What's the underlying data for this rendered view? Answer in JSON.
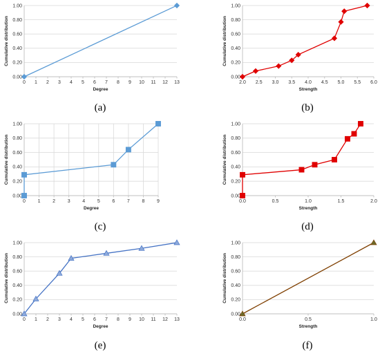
{
  "chart_data": [
    {
      "id": "a",
      "caption": "(a)",
      "type": "line",
      "xlabel": "Degree",
      "ylabel": "Cumulative distribution",
      "xticks": [
        "0",
        "1",
        "2",
        "3",
        "4",
        "5",
        "6",
        "7",
        "8",
        "9",
        "10",
        "11",
        "12",
        "13"
      ],
      "yticks": [
        "0.00",
        "0.20",
        "0.40",
        "0.60",
        "0.80",
        "1.00"
      ],
      "xlim": [
        0,
        13
      ],
      "ylim": [
        0,
        1
      ],
      "grid": "horizontal",
      "color": "#5b9bd5",
      "marker": "diamond",
      "x": [
        0,
        13
      ],
      "y": [
        0.0,
        1.0
      ]
    },
    {
      "id": "b",
      "caption": "(b)",
      "type": "line",
      "xlabel": "Strength",
      "ylabel": "Cumulative distribution",
      "xticks": [
        "2.0",
        "2.5",
        "3.0",
        "3.5",
        "4.0",
        "4.5",
        "5.0",
        "5.5",
        "6.0"
      ],
      "yticks": [
        "0.00",
        "0.20",
        "0.40",
        "0.60",
        "0.80",
        "1.00"
      ],
      "xlim": [
        2,
        6
      ],
      "ylim": [
        0,
        1
      ],
      "grid": "horizontal",
      "color": "#e00000",
      "marker": "diamond",
      "x": [
        2.0,
        2.4,
        3.1,
        3.5,
        3.7,
        4.8,
        5.0,
        5.1,
        5.8
      ],
      "y": [
        0.0,
        0.08,
        0.15,
        0.23,
        0.31,
        0.54,
        0.77,
        0.92,
        1.0
      ]
    },
    {
      "id": "c",
      "caption": "(c)",
      "type": "line",
      "xlabel": "Degree",
      "ylabel": "Cumulative distribution",
      "xticks": [
        "0",
        "1",
        "2",
        "3",
        "4",
        "5",
        "6",
        "7",
        "8",
        "9"
      ],
      "yticks": [
        "0.00",
        "0.20",
        "0.40",
        "0.60",
        "0.80",
        "1.00"
      ],
      "xlim": [
        0,
        9
      ],
      "ylim": [
        0,
        1
      ],
      "grid": "both",
      "color": "#5b9bd5",
      "marker": "square",
      "x": [
        0,
        0,
        6,
        7,
        9
      ],
      "y": [
        0.0,
        0.29,
        0.43,
        0.64,
        1.0
      ]
    },
    {
      "id": "d",
      "caption": "(d)",
      "type": "line",
      "xlabel": "Strength",
      "ylabel": "Cumulative distribution",
      "xticks": [
        "0.0",
        "0.5",
        "1.0",
        "1.5",
        "2.0"
      ],
      "yticks": [
        "0.00",
        "0.20",
        "0.40",
        "0.60",
        "0.80",
        "1.00"
      ],
      "xlim": [
        0,
        2
      ],
      "ylim": [
        0,
        1
      ],
      "grid": "horizontal",
      "color": "#e00000",
      "marker": "square",
      "x": [
        0.0,
        0.0,
        0.9,
        1.1,
        1.4,
        1.6,
        1.7,
        1.8
      ],
      "y": [
        0.0,
        0.29,
        0.36,
        0.43,
        0.5,
        0.79,
        0.86,
        1.0
      ]
    },
    {
      "id": "e",
      "caption": "(e)",
      "type": "line",
      "xlabel": "Degree",
      "ylabel": "Cumulative distribution",
      "xticks": [
        "0",
        "1",
        "2",
        "3",
        "4",
        "5",
        "6",
        "7",
        "8",
        "9",
        "10",
        "11",
        "12",
        "13"
      ],
      "yticks": [
        "0.00",
        "0.20",
        "0.40",
        "0.60",
        "0.80",
        "1.00"
      ],
      "xlim": [
        0,
        13
      ],
      "ylim": [
        0,
        1
      ],
      "grid": "horizontal",
      "color": "#4472c4",
      "marker": "triangle",
      "x": [
        0,
        1,
        3,
        4,
        7,
        10,
        13
      ],
      "y": [
        0.0,
        0.21,
        0.57,
        0.78,
        0.85,
        0.92,
        1.0
      ]
    },
    {
      "id": "f",
      "caption": "(f)",
      "type": "line",
      "xlabel": "Strength",
      "ylabel": "Cumulative distribution",
      "xticks": [
        "0.0",
        "0.5",
        "1.0"
      ],
      "yticks": [
        "0.00",
        "0.20",
        "0.40",
        "0.60",
        "0.80",
        "1.00"
      ],
      "xlim": [
        0,
        1
      ],
      "ylim": [
        0,
        1
      ],
      "grid": "horizontal",
      "color": "#7f3f00",
      "marker": "triangle",
      "x": [
        0.0,
        1.0
      ],
      "y": [
        0.0,
        1.0
      ]
    }
  ],
  "marker_fill": {
    "a": "#5b9bd5",
    "b": "#e00000",
    "c": "#5b9bd5",
    "d": "#e00000",
    "e": "#8eaadb",
    "f": "#6b6b2a"
  }
}
